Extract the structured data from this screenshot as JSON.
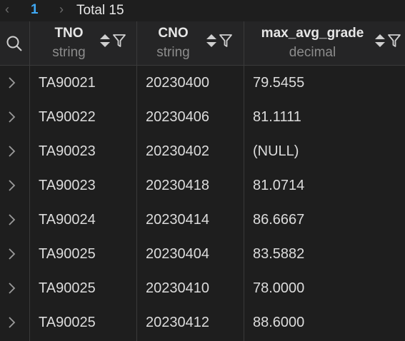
{
  "pager": {
    "current_page": "1",
    "total_label": "Total 15"
  },
  "columns": [
    {
      "name": "TNO",
      "type": "string"
    },
    {
      "name": "CNO",
      "type": "string"
    },
    {
      "name": "max_avg_grade",
      "type": "decimal"
    }
  ],
  "rows": [
    {
      "tno": "TA90021",
      "cno": "20230400",
      "grade": "79.5455"
    },
    {
      "tno": "TA90022",
      "cno": "20230406",
      "grade": "81.1111"
    },
    {
      "tno": "TA90023",
      "cno": "20230402",
      "grade": "(NULL)"
    },
    {
      "tno": "TA90023",
      "cno": "20230418",
      "grade": "81.0714"
    },
    {
      "tno": "TA90024",
      "cno": "20230414",
      "grade": "86.6667"
    },
    {
      "tno": "TA90025",
      "cno": "20230404",
      "grade": "83.5882"
    },
    {
      "tno": "TA90025",
      "cno": "20230410",
      "grade": "78.0000"
    },
    {
      "tno": "TA90025",
      "cno": "20230412",
      "grade": "88.6000"
    }
  ]
}
